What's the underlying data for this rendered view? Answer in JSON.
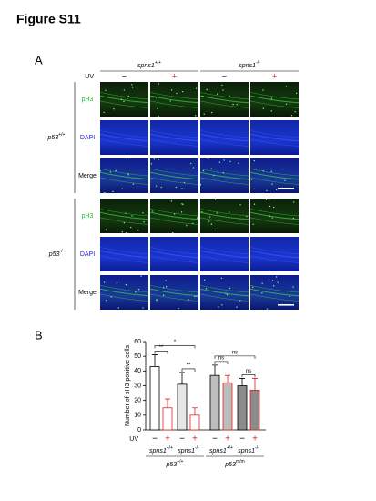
{
  "header": {
    "title": "Figure S11"
  },
  "panel_a": {
    "label": "A",
    "uv_label": "UV",
    "columns": [
      {
        "name": "spns1",
        "sup": "+/+"
      },
      {
        "name": "spns1",
        "sup": "-/-"
      }
    ],
    "uv": [
      "−",
      "+",
      "−",
      "+"
    ],
    "blocks": [
      {
        "name": "p53",
        "sup": "+/+"
      },
      {
        "name": "p53",
        "sup": "-/-"
      }
    ],
    "rows": [
      "pH3",
      "DAPI",
      "Merge"
    ]
  },
  "chart_data": {
    "type": "bar",
    "label": "B",
    "y_label": "Number of pH3 positive cells",
    "ylim": [
      0,
      60
    ],
    "yticks": [
      0,
      10,
      20,
      30,
      40,
      50,
      60
    ],
    "uv_label": "UV",
    "categories": [
      "−",
      "+",
      "−",
      "+",
      "−",
      "+",
      "−",
      "+"
    ],
    "values": [
      43,
      15,
      31,
      10,
      37,
      32,
      30,
      27
    ],
    "errors": [
      8,
      6,
      8,
      5,
      7,
      5,
      5,
      8
    ],
    "fill_colors": [
      "#ffffff",
      "#ffffff",
      "#e6e6e6",
      "#ffffff",
      "#bdbdbd",
      "#bdbdbd",
      "#8c8c8c",
      "#8c8c8c"
    ],
    "edge_colors": [
      "#000000",
      "#e02020",
      "#000000",
      "#e02020",
      "#000000",
      "#e02020",
      "#000000",
      "#e02020"
    ],
    "groups": [
      {
        "name": "spns1",
        "sup": "+/+"
      },
      {
        "name": "spns1",
        "sup": "-/-"
      },
      {
        "name": "spns1",
        "sup": "+/+"
      },
      {
        "name": "spns1",
        "sup": "-/-"
      }
    ],
    "supergroups": [
      {
        "name": "p53",
        "sup": "+/+"
      },
      {
        "name": "p53",
        "sup": "m/m"
      }
    ],
    "significance": [
      {
        "from": 0,
        "to": 3,
        "label": "*"
      },
      {
        "from": 0,
        "to": 1,
        "label": "**"
      },
      {
        "from": 2,
        "to": 3,
        "label": "**"
      },
      {
        "from": 4,
        "to": 7,
        "label": "ns"
      },
      {
        "from": 4,
        "to": 5,
        "label": "ns"
      },
      {
        "from": 6,
        "to": 7,
        "label": "ns"
      }
    ]
  }
}
